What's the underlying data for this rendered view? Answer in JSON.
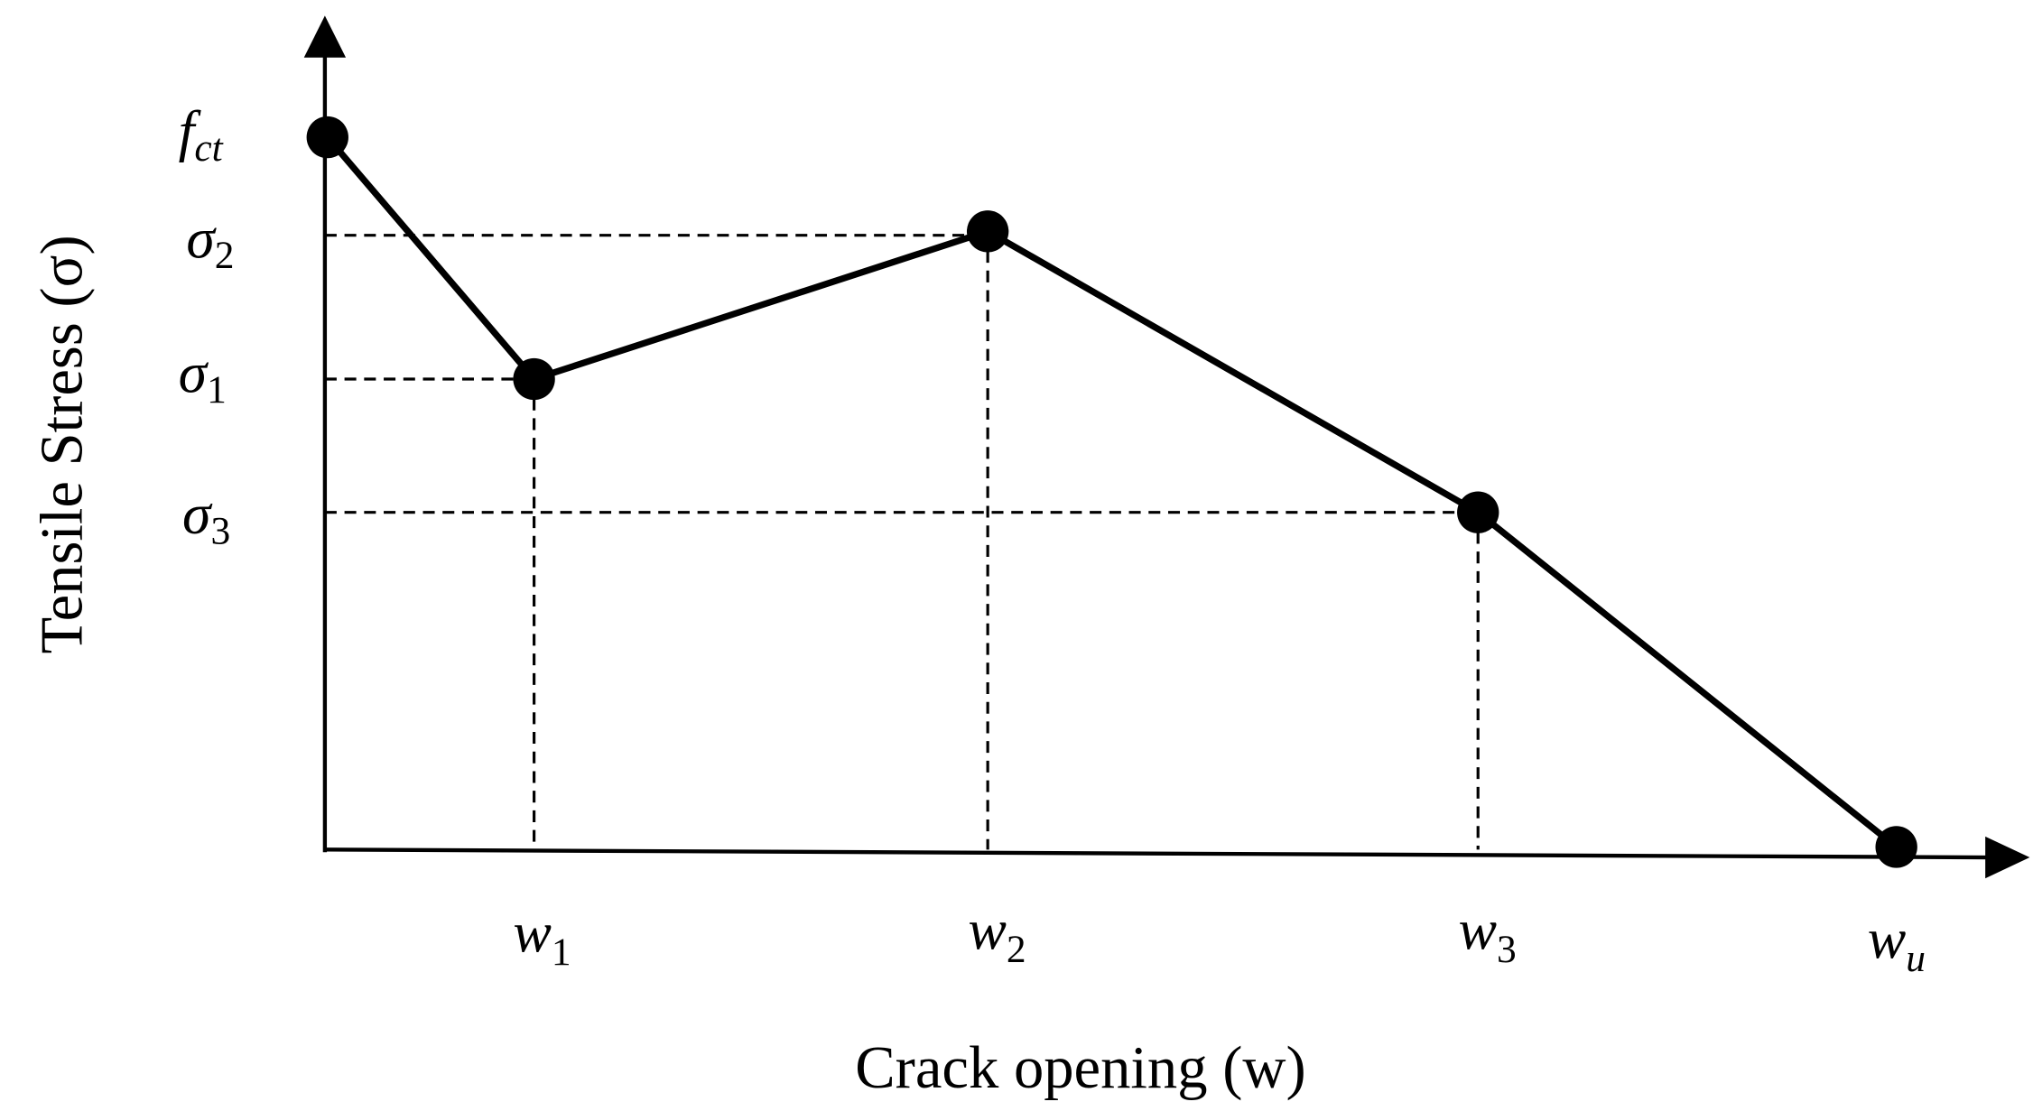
{
  "y_axis": {
    "title": "Tensile Stress (σ)",
    "labels": [
      {
        "symbol": "f",
        "subscript": "ct"
      },
      {
        "symbol": "σ",
        "subscript": "2"
      },
      {
        "symbol": "σ",
        "subscript": "1"
      },
      {
        "symbol": "σ",
        "subscript": "3"
      }
    ]
  },
  "x_axis": {
    "title": "Crack opening (w)",
    "labels": [
      {
        "symbol": "w",
        "subscript": "1"
      },
      {
        "symbol": "w",
        "subscript": "2"
      },
      {
        "symbol": "w",
        "subscript": "3"
      },
      {
        "symbol": "w",
        "subscript": "u"
      }
    ]
  }
}
